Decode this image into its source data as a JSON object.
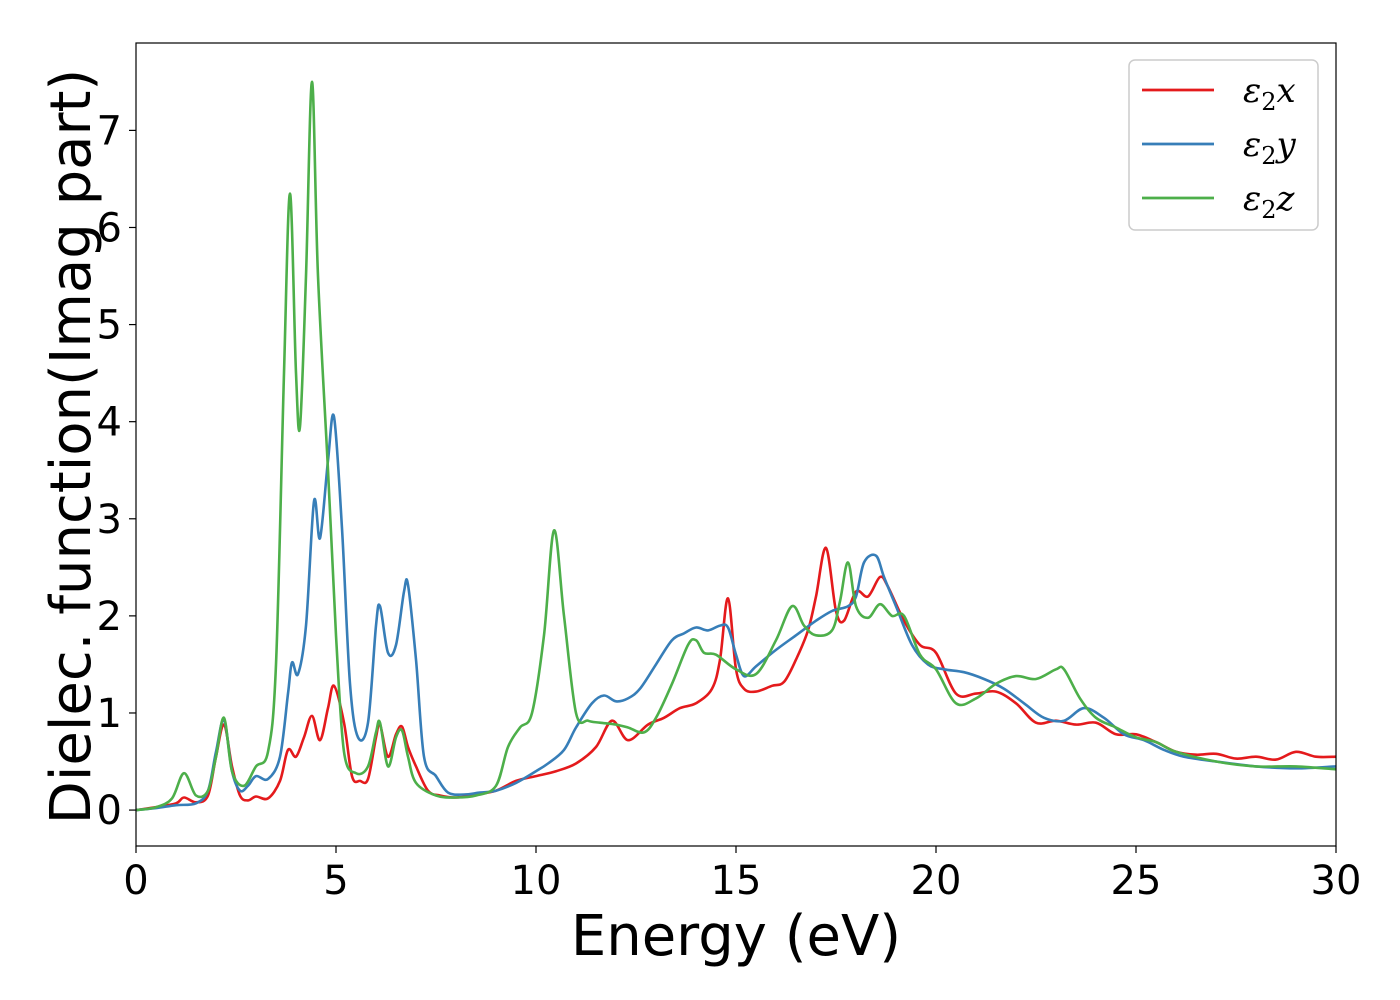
{
  "chart_data": {
    "type": "line",
    "xlabel": "Energy (eV)",
    "ylabel": "Dielec. function(Imag part)",
    "xlim": [
      0,
      30
    ],
    "ylim": [
      -0.37,
      7.9
    ],
    "xticks": [
      0,
      5,
      10,
      15,
      20,
      25,
      30
    ],
    "xtick_labels": [
      "0",
      "5",
      "10",
      "15",
      "20",
      "25",
      "30"
    ],
    "yticks": [
      0,
      1,
      2,
      3,
      4,
      5,
      6,
      7
    ],
    "ytick_labels": [
      "0",
      "1",
      "2",
      "3",
      "4",
      "5",
      "6",
      "7"
    ],
    "grid": false,
    "legend_position": "top-right",
    "series": [
      {
        "name": "ε₂x",
        "legend_base": "ε",
        "legend_sub": "2",
        "legend_var": "x",
        "color": "#e41a1c",
        "x": [
          0,
          0.5,
          1.0,
          1.2,
          1.5,
          1.8,
          2.0,
          2.2,
          2.4,
          2.6,
          2.8,
          3.0,
          3.3,
          3.6,
          3.8,
          4.0,
          4.2,
          4.4,
          4.6,
          4.8,
          4.95,
          5.2,
          5.4,
          5.6,
          5.8,
          6.0,
          6.1,
          6.3,
          6.5,
          6.65,
          6.8,
          7.0,
          7.3,
          7.6,
          8.0,
          8.5,
          9.0,
          9.5,
          10.0,
          10.5,
          11.0,
          11.5,
          11.9,
          12.3,
          12.8,
          13.2,
          13.6,
          14.0,
          14.4,
          14.6,
          14.8,
          15.0,
          15.2,
          15.5,
          15.9,
          16.2,
          16.5,
          16.8,
          17.0,
          17.25,
          17.5,
          17.7,
          18.0,
          18.3,
          18.6,
          18.8,
          19.2,
          19.6,
          20.0,
          20.5,
          21.0,
          21.5,
          22.0,
          22.5,
          23.0,
          23.5,
          24.0,
          24.5,
          25.0,
          25.5,
          26.0,
          26.5,
          27.0,
          27.5,
          28.0,
          28.5,
          29.0,
          29.5,
          30.0
        ],
        "y": [
          0.0,
          0.03,
          0.07,
          0.13,
          0.08,
          0.15,
          0.55,
          0.88,
          0.45,
          0.15,
          0.1,
          0.14,
          0.12,
          0.3,
          0.62,
          0.55,
          0.75,
          0.97,
          0.72,
          1.05,
          1.28,
          0.9,
          0.35,
          0.3,
          0.32,
          0.75,
          0.88,
          0.55,
          0.78,
          0.86,
          0.65,
          0.45,
          0.2,
          0.15,
          0.13,
          0.16,
          0.2,
          0.3,
          0.35,
          0.4,
          0.48,
          0.65,
          0.92,
          0.72,
          0.88,
          0.95,
          1.05,
          1.1,
          1.25,
          1.55,
          2.18,
          1.45,
          1.25,
          1.22,
          1.28,
          1.32,
          1.55,
          1.85,
          2.2,
          2.7,
          2.05,
          1.95,
          2.25,
          2.2,
          2.4,
          2.3,
          1.95,
          1.7,
          1.62,
          1.2,
          1.2,
          1.22,
          1.1,
          0.9,
          0.92,
          0.88,
          0.9,
          0.78,
          0.78,
          0.7,
          0.6,
          0.57,
          0.58,
          0.53,
          0.55,
          0.52,
          0.6,
          0.55,
          0.55
        ]
      },
      {
        "name": "ε₂y",
        "legend_base": "ε",
        "legend_sub": "2",
        "legend_var": "y",
        "color": "#377eb8",
        "x": [
          0,
          0.5,
          1.0,
          1.5,
          1.8,
          2.0,
          2.2,
          2.4,
          2.6,
          2.8,
          3.0,
          3.3,
          3.6,
          3.8,
          3.9,
          4.05,
          4.25,
          4.45,
          4.6,
          4.8,
          4.95,
          5.15,
          5.35,
          5.55,
          5.8,
          6.0,
          6.1,
          6.3,
          6.5,
          6.7,
          6.8,
          7.0,
          7.2,
          7.5,
          7.8,
          8.2,
          8.6,
          9.0,
          9.5,
          10.0,
          10.3,
          10.7,
          11.0,
          11.4,
          11.7,
          12.0,
          12.3,
          12.6,
          13.0,
          13.4,
          13.7,
          14.0,
          14.3,
          14.6,
          14.8,
          15.0,
          15.2,
          15.5,
          16.0,
          16.5,
          17.0,
          17.4,
          17.8,
          18.0,
          18.2,
          18.5,
          18.7,
          19.0,
          19.4,
          19.8,
          20.2,
          20.7,
          21.2,
          21.7,
          22.2,
          22.7,
          23.2,
          23.7,
          24.2,
          24.7,
          25.2,
          25.7,
          26.2,
          27.0,
          28.0,
          29.0,
          30.0
        ],
        "y": [
          0.0,
          0.02,
          0.05,
          0.07,
          0.2,
          0.6,
          0.93,
          0.4,
          0.2,
          0.25,
          0.35,
          0.32,
          0.55,
          1.2,
          1.52,
          1.4,
          1.9,
          3.18,
          2.8,
          3.6,
          4.05,
          2.9,
          1.3,
          0.75,
          0.9,
          1.9,
          2.1,
          1.62,
          1.7,
          2.25,
          2.32,
          1.55,
          0.55,
          0.35,
          0.18,
          0.16,
          0.18,
          0.2,
          0.28,
          0.4,
          0.48,
          0.62,
          0.85,
          1.1,
          1.18,
          1.12,
          1.15,
          1.25,
          1.5,
          1.75,
          1.82,
          1.88,
          1.85,
          1.9,
          1.88,
          1.6,
          1.38,
          1.48,
          1.65,
          1.8,
          1.95,
          2.05,
          2.1,
          2.2,
          2.55,
          2.62,
          2.4,
          2.1,
          1.7,
          1.5,
          1.45,
          1.42,
          1.35,
          1.25,
          1.1,
          0.95,
          0.92,
          1.05,
          0.95,
          0.78,
          0.72,
          0.62,
          0.55,
          0.5,
          0.45,
          0.43,
          0.45
        ]
      },
      {
        "name": "ε₂z",
        "legend_base": "ε",
        "legend_sub": "2",
        "legend_var": "z",
        "color": "#4daf4a",
        "x": [
          0,
          0.5,
          0.9,
          1.2,
          1.5,
          1.8,
          2.0,
          2.2,
          2.4,
          2.7,
          3.0,
          3.3,
          3.5,
          3.7,
          3.85,
          4.0,
          4.1,
          4.25,
          4.4,
          4.55,
          4.8,
          5.0,
          5.2,
          5.5,
          5.8,
          6.0,
          6.1,
          6.3,
          6.5,
          6.65,
          6.8,
          7.0,
          7.5,
          8.0,
          8.5,
          9.0,
          9.3,
          9.6,
          9.9,
          10.2,
          10.45,
          10.7,
          11.0,
          11.3,
          11.6,
          12.0,
          12.3,
          12.7,
          13.0,
          13.4,
          13.8,
          14.0,
          14.2,
          14.5,
          15.0,
          15.5,
          16.0,
          16.4,
          16.7,
          17.0,
          17.4,
          17.6,
          17.8,
          18.0,
          18.3,
          18.6,
          18.9,
          19.2,
          19.6,
          20.0,
          20.5,
          21.0,
          21.5,
          22.0,
          22.5,
          23.0,
          23.2,
          23.6,
          24.0,
          24.5,
          25.0,
          25.5,
          26.0,
          27.0,
          28.0,
          29.0,
          30.0
        ],
        "y": [
          0.0,
          0.03,
          0.12,
          0.38,
          0.15,
          0.2,
          0.55,
          0.95,
          0.4,
          0.25,
          0.45,
          0.6,
          1.5,
          4.5,
          6.35,
          4.5,
          3.95,
          5.5,
          7.5,
          5.5,
          3.5,
          1.8,
          0.6,
          0.38,
          0.45,
          0.8,
          0.9,
          0.45,
          0.75,
          0.82,
          0.55,
          0.28,
          0.15,
          0.13,
          0.15,
          0.25,
          0.65,
          0.85,
          1.0,
          1.8,
          2.88,
          2.0,
          1.0,
          0.92,
          0.9,
          0.88,
          0.85,
          0.8,
          0.95,
          1.3,
          1.7,
          1.75,
          1.62,
          1.6,
          1.45,
          1.4,
          1.75,
          2.1,
          1.9,
          1.8,
          1.85,
          2.15,
          2.55,
          2.1,
          1.98,
          2.12,
          2.0,
          2.0,
          1.6,
          1.45,
          1.1,
          1.15,
          1.3,
          1.38,
          1.35,
          1.45,
          1.45,
          1.15,
          0.95,
          0.85,
          0.75,
          0.7,
          0.6,
          0.5,
          0.45,
          0.45,
          0.42
        ]
      }
    ]
  }
}
